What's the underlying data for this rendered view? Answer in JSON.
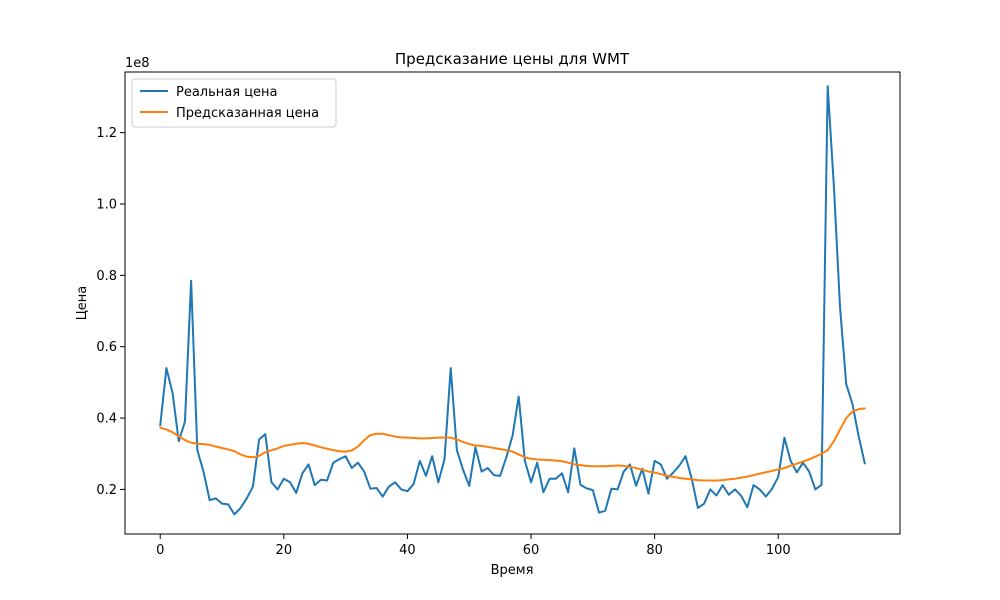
{
  "chart_data": {
    "type": "line",
    "title": "Предсказание цены для WMT",
    "xlabel": "Время",
    "ylabel": "Цена",
    "y_offset_label": "1e8",
    "y_scale": 100000000,
    "xlim": [
      -5.7,
      119.7
    ],
    "ylim": [
      7500000,
      137000000
    ],
    "x_ticks": [
      0,
      20,
      40,
      60,
      80,
      100
    ],
    "x_tick_labels": [
      "0",
      "20",
      "40",
      "60",
      "80",
      "100"
    ],
    "y_ticks": [
      20000000,
      40000000,
      60000000,
      80000000,
      100000000,
      120000000
    ],
    "y_tick_labels": [
      "0.2",
      "0.4",
      "0.6",
      "0.8",
      "1.0",
      "1.2"
    ],
    "grid": false,
    "legend_position": "top-left",
    "series": [
      {
        "name": "Реальная цена",
        "color": "#1f77b4",
        "values": [
          38000000,
          54000000,
          47000000,
          33500000,
          39000000,
          78500000,
          31000000,
          25000000,
          17000000,
          17500000,
          16000000,
          15800000,
          13000000,
          14800000,
          17500000,
          20800000,
          34000000,
          35500000,
          22000000,
          20000000,
          23000000,
          22000000,
          19000000,
          24500000,
          27000000,
          21200000,
          22700000,
          22500000,
          27500000,
          28500000,
          29300000,
          26000000,
          27500000,
          25000000,
          20200000,
          20400000,
          18000000,
          20800000,
          22000000,
          20000000,
          19500000,
          21500000,
          28000000,
          23800000,
          29300000,
          22000000,
          28500000,
          54000000,
          31000000,
          25500000,
          21000000,
          31800000,
          25000000,
          26000000,
          24000000,
          23800000,
          29000000,
          35000000,
          46000000,
          28000000,
          22000000,
          27500000,
          19200000,
          23000000,
          23000000,
          24500000,
          19200000,
          31500000,
          21300000,
          20300000,
          19800000,
          13500000,
          14000000,
          20200000,
          20000000,
          25000000,
          27000000,
          21000000,
          25800000,
          18800000,
          28000000,
          27000000,
          23000000,
          24700000,
          26700000,
          29300000,
          23000000,
          14800000,
          16000000,
          20000000,
          18300000,
          21200000,
          18500000,
          20000000,
          18200000,
          15000000,
          21200000,
          20000000,
          18000000,
          20200000,
          23500000,
          34500000,
          28000000,
          24800000,
          27500000,
          25000000,
          20000000,
          21300000,
          133000000,
          105000000,
          71000000,
          49500000,
          44000000,
          35000000,
          27300000
        ],
        "x": [
          0,
          1,
          2,
          3,
          4,
          5,
          6,
          7,
          8,
          9,
          10,
          11,
          12,
          13,
          14,
          15,
          16,
          17,
          18,
          19,
          20,
          21,
          22,
          23,
          24,
          25,
          26,
          27,
          28,
          29,
          30,
          31,
          32,
          33,
          34,
          35,
          36,
          37,
          38,
          39,
          40,
          41,
          42,
          43,
          44,
          45,
          46,
          47,
          48,
          49,
          50,
          51,
          52,
          53,
          54,
          55,
          56,
          57,
          58,
          59,
          60,
          61,
          62,
          63,
          64,
          65,
          66,
          67,
          68,
          69,
          70,
          71,
          72,
          73,
          74,
          75,
          76,
          77,
          78,
          79,
          80,
          81,
          82,
          83,
          84,
          85,
          86,
          87,
          88,
          89,
          90,
          91,
          92,
          93,
          94,
          95,
          96,
          97,
          98,
          99,
          100,
          101,
          102,
          103,
          104,
          105,
          106,
          107,
          108,
          109,
          110,
          111,
          112,
          113,
          114
        ]
      },
      {
        "name": "Предсказанная цена",
        "color": "#ff7f0e",
        "values": [
          37300000,
          36800000,
          36000000,
          34900000,
          33800000,
          33100000,
          32800000,
          32700000,
          32500000,
          32000000,
          31600000,
          31200000,
          30700000,
          29800000,
          29200000,
          29000000,
          29400000,
          30400000,
          31000000,
          31500000,
          32200000,
          32500000,
          32800000,
          33000000,
          32800000,
          32300000,
          31800000,
          31400000,
          31000000,
          30700000,
          30600000,
          30900000,
          32000000,
          33800000,
          35200000,
          35600000,
          35600000,
          35200000,
          34800000,
          34600000,
          34500000,
          34400000,
          34300000,
          34300000,
          34400000,
          34500000,
          34500000,
          34500000,
          34000000,
          33300000,
          32700000,
          32300000,
          32200000,
          31900000,
          31600000,
          31300000,
          31000000,
          30600000,
          29800000,
          29000000,
          28600000,
          28400000,
          28300000,
          28200000,
          28100000,
          27900000,
          27500000,
          27000000,
          26800000,
          26600000,
          26500000,
          26500000,
          26500000,
          26600000,
          26700000,
          26600000,
          26300000,
          26000000,
          25500000,
          25000000,
          24700000,
          24300000,
          23800000,
          23500000,
          23200000,
          23000000,
          22800000,
          22600000,
          22500000,
          22500000,
          22500000,
          22600000,
          22800000,
          23000000,
          23300000,
          23600000,
          24000000,
          24400000,
          24800000,
          25200000,
          25600000,
          26000000,
          26600000,
          27200000,
          27800000,
          28400000,
          29200000,
          30000000,
          31000000,
          33500000,
          36800000,
          40000000,
          41800000,
          42500000,
          42700000
        ],
        "x": [
          0,
          1,
          2,
          3,
          4,
          5,
          6,
          7,
          8,
          9,
          10,
          11,
          12,
          13,
          14,
          15,
          16,
          17,
          18,
          19,
          20,
          21,
          22,
          23,
          24,
          25,
          26,
          27,
          28,
          29,
          30,
          31,
          32,
          33,
          34,
          35,
          36,
          37,
          38,
          39,
          40,
          41,
          42,
          43,
          44,
          45,
          46,
          47,
          48,
          49,
          50,
          51,
          52,
          53,
          54,
          55,
          56,
          57,
          58,
          59,
          60,
          61,
          62,
          63,
          64,
          65,
          66,
          67,
          68,
          69,
          70,
          71,
          72,
          73,
          74,
          75,
          76,
          77,
          78,
          79,
          80,
          81,
          82,
          83,
          84,
          85,
          86,
          87,
          88,
          89,
          90,
          91,
          92,
          93,
          94,
          95,
          96,
          97,
          98,
          99,
          100,
          101,
          102,
          103,
          104,
          105,
          106,
          107,
          108,
          109,
          110,
          111,
          112,
          113,
          114
        ]
      }
    ]
  }
}
